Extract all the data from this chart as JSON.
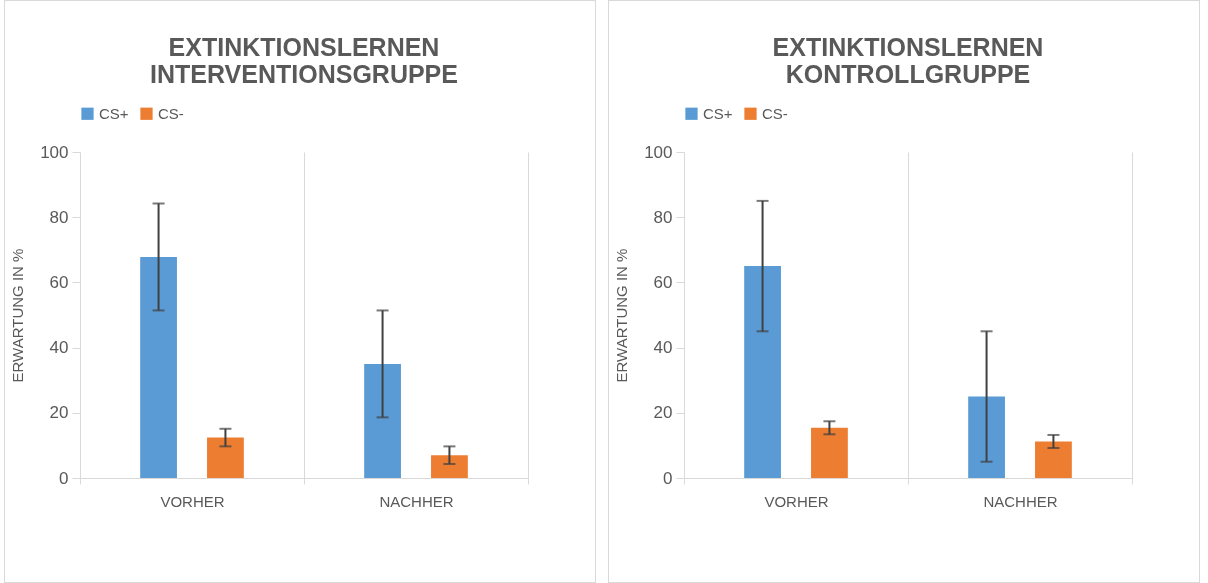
{
  "chart_data": [
    {
      "type": "bar",
      "title": [
        "EXTINKTIONSLERNEN",
        "INTERVENTIONSGRUPPE"
      ],
      "ylabel": "ERWARTUNG IN %",
      "categories": [
        "VORHER",
        "NACHHER"
      ],
      "series": [
        {
          "name": "CS+",
          "color": "#5b9bd5",
          "values": [
            67.8,
            35
          ],
          "errors": [
            16.4,
            16.4
          ]
        },
        {
          "name": "CS-",
          "color": "#ed7d31",
          "values": [
            12.4,
            7
          ],
          "errors": [
            2.7,
            2.7
          ]
        }
      ],
      "ylim": [
        0,
        100
      ],
      "yticks": [
        0,
        20,
        40,
        60,
        80,
        100
      ],
      "grid": "x",
      "legend": "top"
    },
    {
      "type": "bar",
      "title": [
        "EXTINKTIONSLERNEN",
        "KONTROLLGRUPPE"
      ],
      "ylabel": "ERWARTUNG IN %",
      "categories": [
        "VORHER",
        "NACHHER"
      ],
      "series": [
        {
          "name": "CS+",
          "color": "#5b9bd5",
          "values": [
            65,
            25
          ],
          "errors": [
            20,
            20
          ]
        },
        {
          "name": "CS-",
          "color": "#ed7d31",
          "values": [
            15.4,
            11.2
          ],
          "errors": [
            2,
            2
          ]
        }
      ],
      "ylim": [
        0,
        100
      ],
      "yticks": [
        0,
        20,
        40,
        60,
        80,
        100
      ],
      "grid": "x",
      "legend": "top"
    }
  ]
}
